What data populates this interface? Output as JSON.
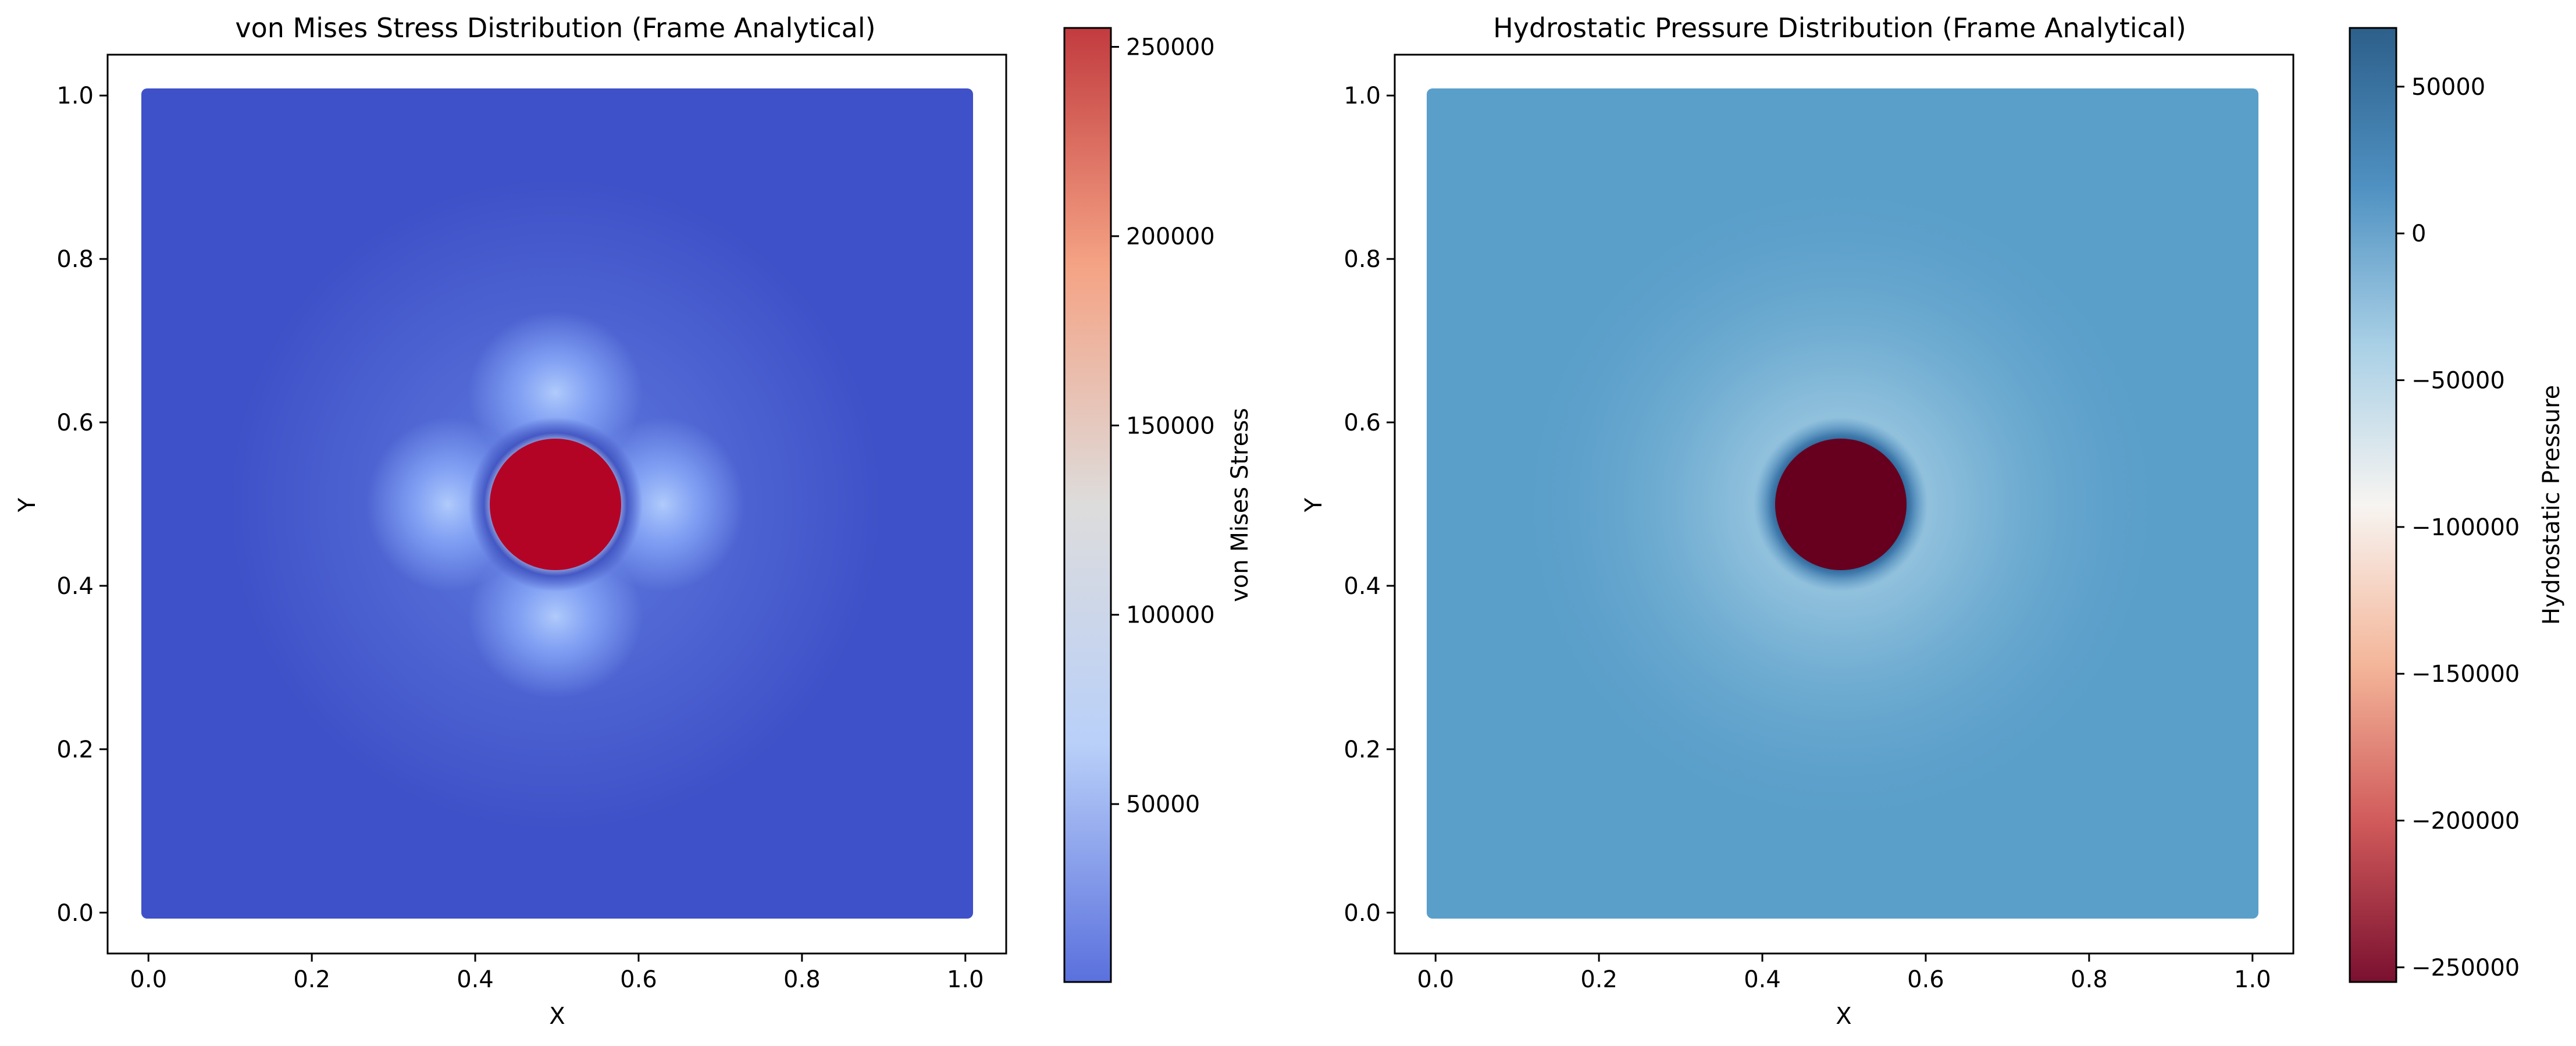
{
  "chart_data": [
    {
      "type": "heatmap",
      "title": "von Mises Stress Distribution (Frame Analytical)",
      "xlabel": "X",
      "ylabel": "Y",
      "xlim": [
        -0.05,
        1.05
      ],
      "ylim": [
        -0.05,
        1.05
      ],
      "xticks": [
        0.0,
        0.2,
        0.4,
        0.6,
        0.8,
        1.0
      ],
      "yticks": [
        0.0,
        0.2,
        0.4,
        0.6,
        0.8,
        1.0
      ],
      "xtick_labels": [
        "0.0",
        "0.2",
        "0.4",
        "0.6",
        "0.8",
        "1.0"
      ],
      "ytick_labels": [
        "0.0",
        "0.2",
        "0.4",
        "0.6",
        "0.8",
        "1.0"
      ],
      "domain": {
        "x": [
          0.0,
          1.0
        ],
        "y": [
          0.0,
          1.0
        ]
      },
      "hole": {
        "center": [
          0.5,
          0.5
        ],
        "radius": 0.08
      },
      "colormap": "coolwarm",
      "background_value": 10000,
      "hole_value": 255000,
      "colorbar": {
        "label": "von Mises Stress",
        "range": [
          3000,
          255000
        ],
        "ticks": [
          50000,
          100000,
          150000,
          200000,
          250000
        ],
        "tick_labels": [
          "50000",
          "100000",
          "150000",
          "200000",
          "250000"
        ],
        "colors": [
          "#5a70dd",
          "#b9d0f9",
          "#dddcdc",
          "#f5a385",
          "#c23b3f"
        ]
      }
    },
    {
      "type": "heatmap",
      "title": "Hydrostatic Pressure Distribution (Frame Analytical)",
      "xlabel": "X",
      "ylabel": "Y",
      "xlim": [
        -0.05,
        1.05
      ],
      "ylim": [
        -0.05,
        1.05
      ],
      "xticks": [
        0.0,
        0.2,
        0.4,
        0.6,
        0.8,
        1.0
      ],
      "yticks": [
        0.0,
        0.2,
        0.4,
        0.6,
        0.8,
        1.0
      ],
      "xtick_labels": [
        "0.0",
        "0.2",
        "0.4",
        "0.6",
        "0.8",
        "1.0"
      ],
      "ytick_labels": [
        "0.0",
        "0.2",
        "0.4",
        "0.6",
        "0.8",
        "1.0"
      ],
      "domain": {
        "x": [
          0.0,
          1.0
        ],
        "y": [
          0.0,
          1.0
        ]
      },
      "hole": {
        "center": [
          0.5,
          0.5
        ],
        "radius": 0.08
      },
      "colormap": "RdBu",
      "background_value": 0,
      "hole_value": -255000,
      "colorbar": {
        "label": "Hydrostatic Pressure",
        "range": [
          -255000,
          70000
        ],
        "ticks": [
          50000,
          0,
          -50000,
          -100000,
          -150000,
          -200000,
          -250000
        ],
        "tick_labels": [
          "50000",
          "0",
          "−50000",
          "−100000",
          "−150000",
          "−200000",
          "−250000"
        ],
        "colors": [
          "#2d5f8a",
          "#4f91c2",
          "#a9d0e6",
          "#f7f4f1",
          "#f4b69a",
          "#d05a5a",
          "#7a1030"
        ]
      }
    }
  ]
}
